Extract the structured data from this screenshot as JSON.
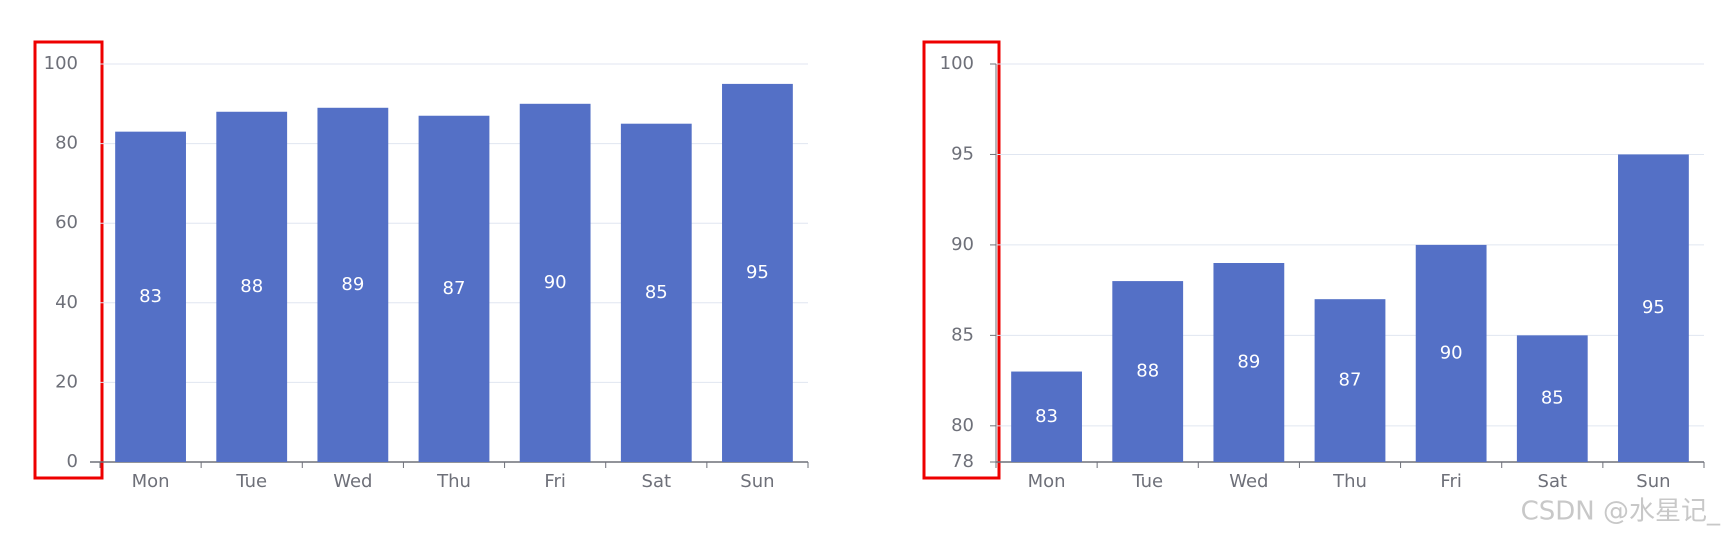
{
  "chart_data": [
    {
      "type": "bar",
      "categories": [
        "Mon",
        "Tue",
        "Wed",
        "Thu",
        "Fri",
        "Sat",
        "Sun"
      ],
      "values": [
        83,
        88,
        89,
        87,
        90,
        85,
        95
      ],
      "color": "#5470c6",
      "ylim": [
        0,
        100
      ],
      "yticks": [
        0,
        20,
        40,
        60,
        80,
        100
      ],
      "grid": true
    },
    {
      "type": "bar",
      "categories": [
        "Mon",
        "Tue",
        "Wed",
        "Thu",
        "Fri",
        "Sat",
        "Sun"
      ],
      "values": [
        83,
        88,
        89,
        87,
        90,
        85,
        95
      ],
      "color": "#5470c6",
      "ylim": [
        78,
        100
      ],
      "yticks": [
        78,
        80,
        85,
        90,
        95,
        100
      ],
      "grid": true
    }
  ],
  "watermark": "CSDN @水星记_"
}
